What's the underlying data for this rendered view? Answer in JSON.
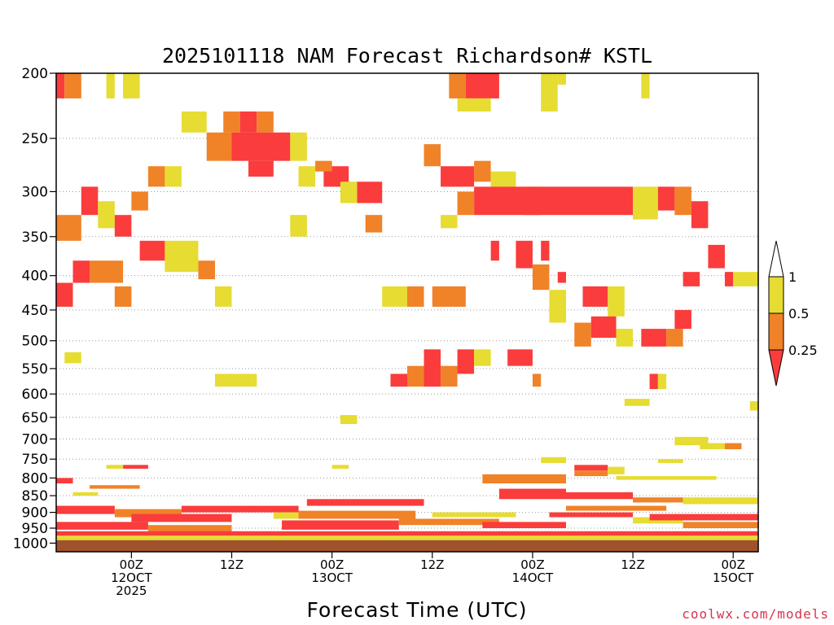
{
  "chart_data": {
    "type": "heatmap",
    "title": "2025101118 NAM Forecast Richardson# KSTL",
    "xlabel": "Forecast Time (UTC)",
    "ylabel": "",
    "y_axis": "pressure (hPa), log scale, inverted",
    "ylim": [
      1030,
      200
    ],
    "xlim_hours_from_12OCT00Z": [
      -9,
      75
    ],
    "y_ticks": [
      200,
      250,
      300,
      350,
      400,
      450,
      500,
      550,
      600,
      650,
      700,
      750,
      800,
      850,
      900,
      950,
      1000
    ],
    "x_ticks": [
      {
        "hour": 0,
        "lines": [
          "00Z",
          "12OCT",
          "2025"
        ]
      },
      {
        "hour": 12,
        "lines": [
          "12Z"
        ]
      },
      {
        "hour": 24,
        "lines": [
          "00Z",
          "13OCT"
        ]
      },
      {
        "hour": 36,
        "lines": [
          "12Z"
        ]
      },
      {
        "hour": 48,
        "lines": [
          "00Z",
          "14OCT"
        ]
      },
      {
        "hour": 60,
        "lines": [
          "12Z"
        ]
      },
      {
        "hour": 72,
        "lines": [
          "00Z",
          "15OCT"
        ]
      }
    ],
    "legend": {
      "position": "right",
      "bins": [
        {
          "label": "1",
          "range": "0.5-1",
          "color": "#e6dc32"
        },
        {
          "label": "0.5",
          "range": "0.25-0.5",
          "color": "#f08228"
        },
        {
          "label": "0.25",
          "range": "<0.25",
          "color": "#fa3c3c"
        }
      ]
    },
    "colors": {
      "low": "#fa3c3c",
      "mid": "#f08228",
      "high": "#e6dc32",
      "ground": "#a0522d"
    },
    "ground_level_hpa": 990,
    "cell_hours": 1,
    "cells": [
      {
        "x0": -9,
        "x1": -8,
        "p0": 200,
        "p1": 218,
        "c": "low"
      },
      {
        "x0": -8,
        "x1": -6,
        "p0": 200,
        "p1": 218,
        "c": "mid"
      },
      {
        "x0": -3,
        "x1": -2,
        "p0": 200,
        "p1": 218,
        "c": "high"
      },
      {
        "x0": -1,
        "x1": 1,
        "p0": 200,
        "p1": 218,
        "c": "high"
      },
      {
        "x0": 38,
        "x1": 40,
        "p0": 200,
        "p1": 218,
        "c": "mid"
      },
      {
        "x0": 40,
        "x1": 44,
        "p0": 200,
        "p1": 218,
        "c": "low"
      },
      {
        "x0": 39,
        "x1": 43,
        "p0": 218,
        "p1": 228,
        "c": "high"
      },
      {
        "x0": 49,
        "x1": 51,
        "p0": 200,
        "p1": 228,
        "c": "high"
      },
      {
        "x0": 61,
        "x1": 62,
        "p0": 200,
        "p1": 218,
        "c": "high"
      },
      {
        "x0": 11,
        "x1": 13,
        "p0": 228,
        "p1": 245,
        "c": "mid"
      },
      {
        "x0": 9,
        "x1": 12,
        "p0": 245,
        "p1": 270,
        "c": "mid"
      },
      {
        "x0": 13,
        "x1": 15,
        "p0": 228,
        "p1": 245,
        "c": "low"
      },
      {
        "x0": 15,
        "x1": 17,
        "p0": 228,
        "p1": 245,
        "c": "mid"
      },
      {
        "x0": 12,
        "x1": 19,
        "p0": 245,
        "p1": 270,
        "c": "low"
      },
      {
        "x0": 14,
        "x1": 17,
        "p0": 270,
        "p1": 285,
        "c": "low"
      },
      {
        "x0": 19,
        "x1": 21,
        "p0": 245,
        "p1": 270,
        "c": "high"
      },
      {
        "x0": 6,
        "x1": 9,
        "p0": 228,
        "p1": 245,
        "c": "high"
      },
      {
        "x0": 2,
        "x1": 4,
        "p0": 275,
        "p1": 295,
        "c": "mid"
      },
      {
        "x0": 4,
        "x1": 6,
        "p0": 275,
        "p1": 295,
        "c": "high"
      },
      {
        "x0": 20,
        "x1": 22,
        "p0": 275,
        "p1": 295,
        "c": "high"
      },
      {
        "x0": 23,
        "x1": 26,
        "p0": 275,
        "p1": 295,
        "c": "low"
      },
      {
        "x0": 22,
        "x1": 24,
        "p0": 270,
        "p1": 280,
        "c": "mid"
      },
      {
        "x0": 27,
        "x1": 30,
        "p0": 290,
        "p1": 312,
        "c": "low"
      },
      {
        "x0": 25,
        "x1": 27,
        "p0": 290,
        "p1": 312,
        "c": "high"
      },
      {
        "x0": 35,
        "x1": 37,
        "p0": 255,
        "p1": 275,
        "c": "mid"
      },
      {
        "x0": 37,
        "x1": 41,
        "p0": 275,
        "p1": 295,
        "c": "low"
      },
      {
        "x0": 41,
        "x1": 43,
        "p0": 270,
        "p1": 290,
        "c": "mid"
      },
      {
        "x0": 43,
        "x1": 46,
        "p0": 280,
        "p1": 295,
        "c": "high"
      },
      {
        "x0": 51,
        "x1": 52,
        "p0": 200,
        "p1": 208,
        "c": "high"
      },
      {
        "x0": 41,
        "x1": 60,
        "p0": 295,
        "p1": 325,
        "c": "low"
      },
      {
        "x0": 39,
        "x1": 41,
        "p0": 300,
        "p1": 325,
        "c": "mid"
      },
      {
        "x0": 47,
        "x1": 49,
        "p0": 295,
        "p1": 325,
        "c": "low"
      },
      {
        "x0": 60,
        "x1": 63,
        "p0": 295,
        "p1": 330,
        "c": "high"
      },
      {
        "x0": 63,
        "x1": 65,
        "p0": 295,
        "p1": 320,
        "c": "low"
      },
      {
        "x0": 65,
        "x1": 67,
        "p0": 295,
        "p1": 325,
        "c": "mid"
      },
      {
        "x0": 67,
        "x1": 69,
        "p0": 310,
        "p1": 340,
        "c": "low"
      },
      {
        "x0": -6,
        "x1": -4,
        "p0": 295,
        "p1": 325,
        "c": "low"
      },
      {
        "x0": -4,
        "x1": -2,
        "p0": 310,
        "p1": 340,
        "c": "high"
      },
      {
        "x0": -2,
        "x1": 0,
        "p0": 325,
        "p1": 350,
        "c": "low"
      },
      {
        "x0": -9,
        "x1": -6,
        "p0": 325,
        "p1": 355,
        "c": "mid"
      },
      {
        "x0": 0,
        "x1": 2,
        "p0": 300,
        "p1": 320,
        "c": "mid"
      },
      {
        "x0": 1,
        "x1": 4,
        "p0": 355,
        "p1": 380,
        "c": "low"
      },
      {
        "x0": 4,
        "x1": 8,
        "p0": 355,
        "p1": 395,
        "c": "high"
      },
      {
        "x0": -5,
        "x1": -1,
        "p0": 380,
        "p1": 410,
        "c": "mid"
      },
      {
        "x0": -7,
        "x1": -5,
        "p0": 380,
        "p1": 410,
        "c": "low"
      },
      {
        "x0": -9,
        "x1": -7,
        "p0": 410,
        "p1": 445,
        "c": "low"
      },
      {
        "x0": -2,
        "x1": 0,
        "p0": 415,
        "p1": 445,
        "c": "mid"
      },
      {
        "x0": 8,
        "x1": 10,
        "p0": 380,
        "p1": 405,
        "c": "mid"
      },
      {
        "x0": 10,
        "x1": 12,
        "p0": 415,
        "p1": 445,
        "c": "high"
      },
      {
        "x0": 19,
        "x1": 21,
        "p0": 325,
        "p1": 350,
        "c": "high"
      },
      {
        "x0": 28,
        "x1": 30,
        "p0": 325,
        "p1": 345,
        "c": "mid"
      },
      {
        "x0": 30,
        "x1": 33,
        "p0": 415,
        "p1": 445,
        "c": "high"
      },
      {
        "x0": 33,
        "x1": 35,
        "p0": 415,
        "p1": 445,
        "c": "mid"
      },
      {
        "x0": 36,
        "x1": 40,
        "p0": 415,
        "p1": 445,
        "c": "mid"
      },
      {
        "x0": 37,
        "x1": 39,
        "p0": 325,
        "p1": 340,
        "c": "high"
      },
      {
        "x0": 43,
        "x1": 44,
        "p0": 355,
        "p1": 380,
        "c": "low"
      },
      {
        "x0": 46,
        "x1": 48,
        "p0": 355,
        "p1": 390,
        "c": "low"
      },
      {
        "x0": 49,
        "x1": 50,
        "p0": 355,
        "p1": 380,
        "c": "low"
      },
      {
        "x0": 48,
        "x1": 50,
        "p0": 385,
        "p1": 420,
        "c": "mid"
      },
      {
        "x0": 50,
        "x1": 52,
        "p0": 420,
        "p1": 470,
        "c": "high"
      },
      {
        "x0": 51,
        "x1": 52,
        "p0": 395,
        "p1": 410,
        "c": "low"
      },
      {
        "x0": 54,
        "x1": 57,
        "p0": 415,
        "p1": 445,
        "c": "low"
      },
      {
        "x0": 57,
        "x1": 59,
        "p0": 415,
        "p1": 460,
        "c": "high"
      },
      {
        "x0": 53,
        "x1": 55,
        "p0": 470,
        "p1": 510,
        "c": "mid"
      },
      {
        "x0": 55,
        "x1": 58,
        "p0": 460,
        "p1": 495,
        "c": "low"
      },
      {
        "x0": 58,
        "x1": 60,
        "p0": 480,
        "p1": 510,
        "c": "high"
      },
      {
        "x0": 61,
        "x1": 64,
        "p0": 480,
        "p1": 510,
        "c": "low"
      },
      {
        "x0": 64,
        "x1": 66,
        "p0": 480,
        "p1": 510,
        "c": "mid"
      },
      {
        "x0": 65,
        "x1": 67,
        "p0": 450,
        "p1": 480,
        "c": "low"
      },
      {
        "x0": 66,
        "x1": 68,
        "p0": 395,
        "p1": 415,
        "c": "low"
      },
      {
        "x0": 69,
        "x1": 71,
        "p0": 360,
        "p1": 390,
        "c": "low"
      },
      {
        "x0": 71,
        "x1": 72,
        "p0": 395,
        "p1": 415,
        "c": "low"
      },
      {
        "x0": 72,
        "x1": 75,
        "p0": 395,
        "p1": 415,
        "c": "high"
      },
      {
        "x0": -8,
        "x1": -6,
        "p0": 520,
        "p1": 540,
        "c": "high"
      },
      {
        "x0": 10,
        "x1": 15,
        "p0": 560,
        "p1": 585,
        "c": "high"
      },
      {
        "x0": 31,
        "x1": 33,
        "p0": 560,
        "p1": 585,
        "c": "low"
      },
      {
        "x0": 33,
        "x1": 35,
        "p0": 545,
        "p1": 585,
        "c": "mid"
      },
      {
        "x0": 35,
        "x1": 37,
        "p0": 515,
        "p1": 585,
        "c": "low"
      },
      {
        "x0": 37,
        "x1": 39,
        "p0": 545,
        "p1": 585,
        "c": "mid"
      },
      {
        "x0": 39,
        "x1": 41,
        "p0": 515,
        "p1": 560,
        "c": "low"
      },
      {
        "x0": 41,
        "x1": 43,
        "p0": 515,
        "p1": 545,
        "c": "high"
      },
      {
        "x0": 45,
        "x1": 48,
        "p0": 515,
        "p1": 545,
        "c": "low"
      },
      {
        "x0": 48,
        "x1": 49,
        "p0": 560,
        "p1": 585,
        "c": "mid"
      },
      {
        "x0": 62,
        "x1": 63,
        "p0": 560,
        "p1": 590,
        "c": "low"
      },
      {
        "x0": 63,
        "x1": 64,
        "p0": 560,
        "p1": 590,
        "c": "high"
      },
      {
        "x0": 59,
        "x1": 62,
        "p0": 610,
        "p1": 625,
        "c": "high"
      },
      {
        "x0": 74,
        "x1": 77,
        "p0": 615,
        "p1": 635,
        "c": "high"
      },
      {
        "x0": 25,
        "x1": 27,
        "p0": 645,
        "p1": 665,
        "c": "high"
      },
      {
        "x0": 65,
        "x1": 69,
        "p0": 695,
        "p1": 715,
        "c": "high"
      },
      {
        "x0": 68,
        "x1": 71,
        "p0": 710,
        "p1": 725,
        "c": "high"
      },
      {
        "x0": 71,
        "x1": 73,
        "p0": 710,
        "p1": 725,
        "c": "mid"
      },
      {
        "x0": -9,
        "x1": -7,
        "p0": 800,
        "p1": 815,
        "c": "low"
      },
      {
        "x0": -1,
        "x1": 2,
        "p0": 765,
        "p1": 775,
        "c": "low"
      },
      {
        "x0": -3,
        "x1": -1,
        "p0": 765,
        "p1": 775,
        "c": "high"
      },
      {
        "x0": 24,
        "x1": 26,
        "p0": 765,
        "p1": 775,
        "c": "high"
      },
      {
        "x0": 49,
        "x1": 52,
        "p0": 745,
        "p1": 760,
        "c": "high"
      },
      {
        "x0": 53,
        "x1": 57,
        "p0": 765,
        "p1": 780,
        "c": "low"
      },
      {
        "x0": 53,
        "x1": 57,
        "p0": 780,
        "p1": 795,
        "c": "mid"
      },
      {
        "x0": 57,
        "x1": 59,
        "p0": 770,
        "p1": 790,
        "c": "high"
      },
      {
        "x0": 63,
        "x1": 66,
        "p0": 750,
        "p1": 760,
        "c": "high"
      },
      {
        "x0": 58,
        "x1": 70,
        "p0": 795,
        "p1": 805,
        "c": "high"
      },
      {
        "x0": 42,
        "x1": 52,
        "p0": 790,
        "p1": 815,
        "c": "mid"
      },
      {
        "x0": 44,
        "x1": 52,
        "p0": 830,
        "p1": 860,
        "c": "low"
      },
      {
        "x0": 52,
        "x1": 60,
        "p0": 840,
        "p1": 860,
        "c": "low"
      },
      {
        "x0": 60,
        "x1": 66,
        "p0": 855,
        "p1": 870,
        "c": "mid"
      },
      {
        "x0": 66,
        "x1": 75,
        "p0": 855,
        "p1": 875,
        "c": "high"
      },
      {
        "x0": -5,
        "x1": 1,
        "p0": 820,
        "p1": 830,
        "c": "mid"
      },
      {
        "x0": -7,
        "x1": -4,
        "p0": 840,
        "p1": 850,
        "c": "high"
      },
      {
        "x0": -9,
        "x1": -2,
        "p0": 880,
        "p1": 905,
        "c": "low"
      },
      {
        "x0": -2,
        "x1": 6,
        "p0": 890,
        "p1": 915,
        "c": "mid"
      },
      {
        "x0": 6,
        "x1": 20,
        "p0": 880,
        "p1": 900,
        "c": "low"
      },
      {
        "x0": 0,
        "x1": 12,
        "p0": 905,
        "p1": 930,
        "c": "low"
      },
      {
        "x0": -9,
        "x1": 2,
        "p0": 930,
        "p1": 955,
        "c": "low"
      },
      {
        "x0": 2,
        "x1": 12,
        "p0": 940,
        "p1": 965,
        "c": "mid"
      },
      {
        "x0": 17,
        "x1": 23,
        "p0": 900,
        "p1": 920,
        "c": "high"
      },
      {
        "x0": 21,
        "x1": 35,
        "p0": 860,
        "p1": 880,
        "c": "low"
      },
      {
        "x0": 20,
        "x1": 34,
        "p0": 895,
        "p1": 920,
        "c": "mid"
      },
      {
        "x0": 18,
        "x1": 32,
        "p0": 925,
        "p1": 955,
        "c": "low"
      },
      {
        "x0": 32,
        "x1": 44,
        "p0": 920,
        "p1": 940,
        "c": "mid"
      },
      {
        "x0": 36,
        "x1": 46,
        "p0": 900,
        "p1": 915,
        "c": "high"
      },
      {
        "x0": 42,
        "x1": 52,
        "p0": 930,
        "p1": 950,
        "c": "low"
      },
      {
        "x0": 50,
        "x1": 60,
        "p0": 900,
        "p1": 915,
        "c": "low"
      },
      {
        "x0": 52,
        "x1": 64,
        "p0": 880,
        "p1": 895,
        "c": "mid"
      },
      {
        "x0": 60,
        "x1": 66,
        "p0": 915,
        "p1": 935,
        "c": "high"
      },
      {
        "x0": 62,
        "x1": 75,
        "p0": 905,
        "p1": 925,
        "c": "low"
      },
      {
        "x0": 66,
        "x1": 75,
        "p0": 930,
        "p1": 950,
        "c": "mid"
      },
      {
        "x0": -9,
        "x1": 75,
        "p0": 960,
        "p1": 975,
        "c": "low"
      },
      {
        "x0": -9,
        "x1": 75,
        "p0": 975,
        "p1": 990,
        "c": "high"
      }
    ]
  },
  "watermark": "coolwx.com/models"
}
